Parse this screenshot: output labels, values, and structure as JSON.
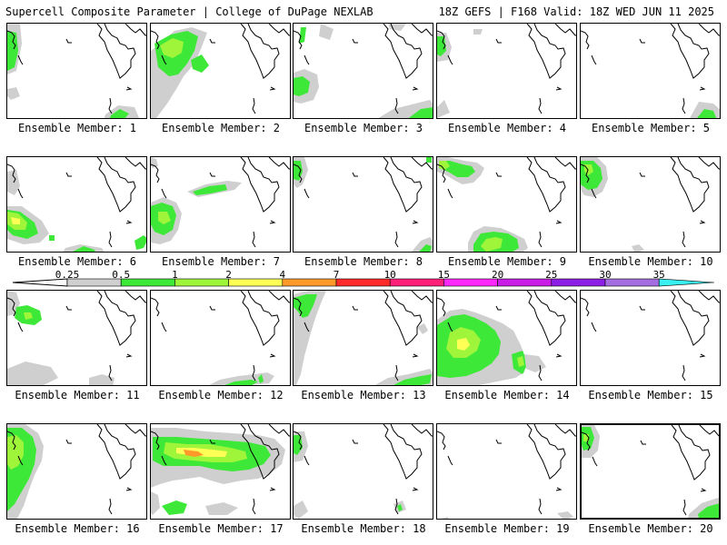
{
  "header": {
    "left_title": "Supercell Composite Parameter | College of DuPage NEXLAB",
    "right_title": "18Z GEFS | F168 Valid: 18Z WED JUN 11 2025"
  },
  "member_prefix": "Ensemble Member: ",
  "selected_member": 20,
  "colorbar": {
    "labels": [
      "0.25",
      "0.5",
      "1",
      "2",
      "4",
      "7",
      "10",
      "15",
      "20",
      "25",
      "30",
      "35"
    ],
    "colors": [
      "#cfcfcf",
      "#3ee838",
      "#9ef53a",
      "#ffff55",
      "#ff9a2a",
      "#ff2a2a",
      "#ff1e78",
      "#ff28ff",
      "#c81ee6",
      "#8c1ee6",
      "#a46ee0",
      "#38f0f0"
    ]
  },
  "members": [
    {
      "id": 1,
      "label": "Ensemble Member: 1"
    },
    {
      "id": 2,
      "label": "Ensemble Member: 2"
    },
    {
      "id": 3,
      "label": "Ensemble Member: 3"
    },
    {
      "id": 4,
      "label": "Ensemble Member: 4"
    },
    {
      "id": 5,
      "label": "Ensemble Member: 5"
    },
    {
      "id": 6,
      "label": "Ensemble Member: 6"
    },
    {
      "id": 7,
      "label": "Ensemble Member: 7"
    },
    {
      "id": 8,
      "label": "Ensemble Member: 8"
    },
    {
      "id": 9,
      "label": "Ensemble Member: 9"
    },
    {
      "id": 10,
      "label": "Ensemble Member: 10"
    },
    {
      "id": 11,
      "label": "Ensemble Member: 11"
    },
    {
      "id": 12,
      "label": "Ensemble Member: 12"
    },
    {
      "id": 13,
      "label": "Ensemble Member: 13"
    },
    {
      "id": 14,
      "label": "Ensemble Member: 14"
    },
    {
      "id": 15,
      "label": "Ensemble Member: 15"
    },
    {
      "id": 16,
      "label": "Ensemble Member: 16"
    },
    {
      "id": 17,
      "label": "Ensemble Member: 17"
    },
    {
      "id": 18,
      "label": "Ensemble Member: 18"
    },
    {
      "id": 19,
      "label": "Ensemble Member: 19"
    },
    {
      "id": 20,
      "label": "Ensemble Member: 20"
    }
  ]
}
